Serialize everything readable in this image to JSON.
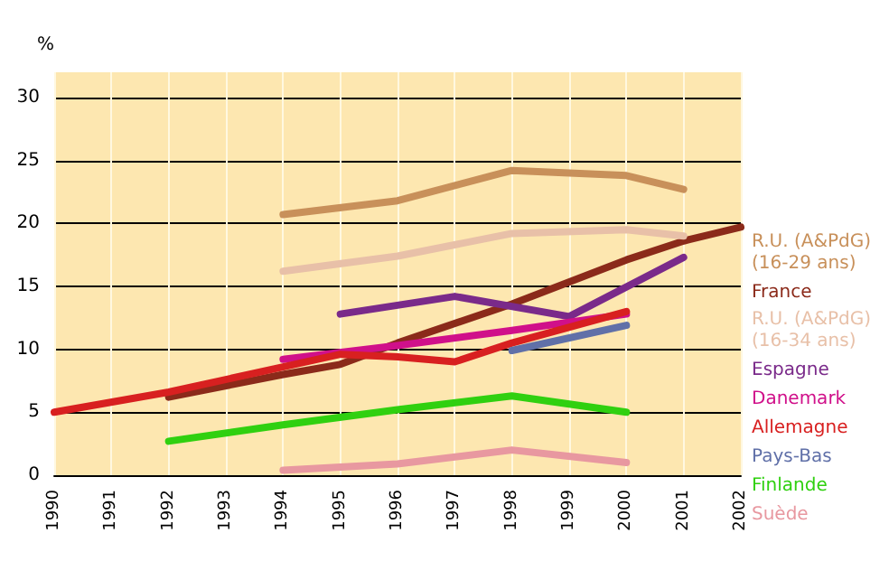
{
  "chart_data": {
    "type": "line",
    "ylabel": "%",
    "xlim": [
      1990,
      2002
    ],
    "xticks": [
      1990,
      1991,
      1992,
      1993,
      1994,
      1995,
      1996,
      1997,
      1998,
      1999,
      2000,
      2001,
      2002
    ],
    "ylim": [
      0,
      32
    ],
    "yticks": [
      0,
      5,
      10,
      15,
      20,
      25,
      30
    ],
    "grid": true,
    "legend": "right",
    "marker": "none",
    "line_style": "solid",
    "series": [
      {
        "name": "R.U. (A&PdG) (16-29 ans)",
        "color": "#c8905a",
        "x": [
          1994,
          1996,
          1998,
          2000,
          2001
        ],
        "values": [
          20.7,
          21.8,
          24.2,
          23.8,
          22.7
        ]
      },
      {
        "name": "France",
        "color": "#8b2a1a",
        "x": [
          1992,
          1994,
          1995,
          1996,
          1998,
          2000,
          2001,
          2002
        ],
        "values": [
          6.2,
          8.0,
          8.8,
          10.5,
          13.6,
          17.1,
          18.6,
          19.7
        ]
      },
      {
        "name": "R.U. (A&PdG) (16-34 ans)",
        "color": "#e8c0a8",
        "x": [
          1994,
          1996,
          1998,
          2000,
          2001
        ],
        "values": [
          16.2,
          17.4,
          19.2,
          19.5,
          19.0
        ]
      },
      {
        "name": "Espagne",
        "color": "#7a2a8a",
        "x": [
          1995,
          1997,
          1999,
          2001
        ],
        "values": [
          12.8,
          14.2,
          12.6,
          17.3
        ]
      },
      {
        "name": "Danemark",
        "color": "#d0108a",
        "x": [
          1994,
          1996,
          1998,
          2000
        ],
        "values": [
          9.2,
          10.3,
          11.5,
          12.8
        ]
      },
      {
        "name": "Allemagne",
        "color": "#d82020",
        "x": [
          1990,
          1992,
          1994,
          1995,
          1996,
          1997,
          1998,
          2000
        ],
        "values": [
          5.0,
          6.6,
          8.6,
          9.6,
          9.4,
          9.0,
          10.5,
          13.0
        ]
      },
      {
        "name": "Pays-Bas",
        "color": "#6070a8",
        "x": [
          1998,
          2000
        ],
        "values": [
          9.9,
          11.9
        ]
      },
      {
        "name": "Finlande",
        "color": "#30d010",
        "x": [
          1992,
          1994,
          1996,
          1998,
          2000
        ],
        "values": [
          2.7,
          4.0,
          5.2,
          6.3,
          5.0
        ]
      },
      {
        "name": "Suède",
        "color": "#e898a0",
        "x": [
          1994,
          1996,
          1998,
          2000
        ],
        "values": [
          0.4,
          0.9,
          2.0,
          1.0
        ]
      }
    ]
  }
}
